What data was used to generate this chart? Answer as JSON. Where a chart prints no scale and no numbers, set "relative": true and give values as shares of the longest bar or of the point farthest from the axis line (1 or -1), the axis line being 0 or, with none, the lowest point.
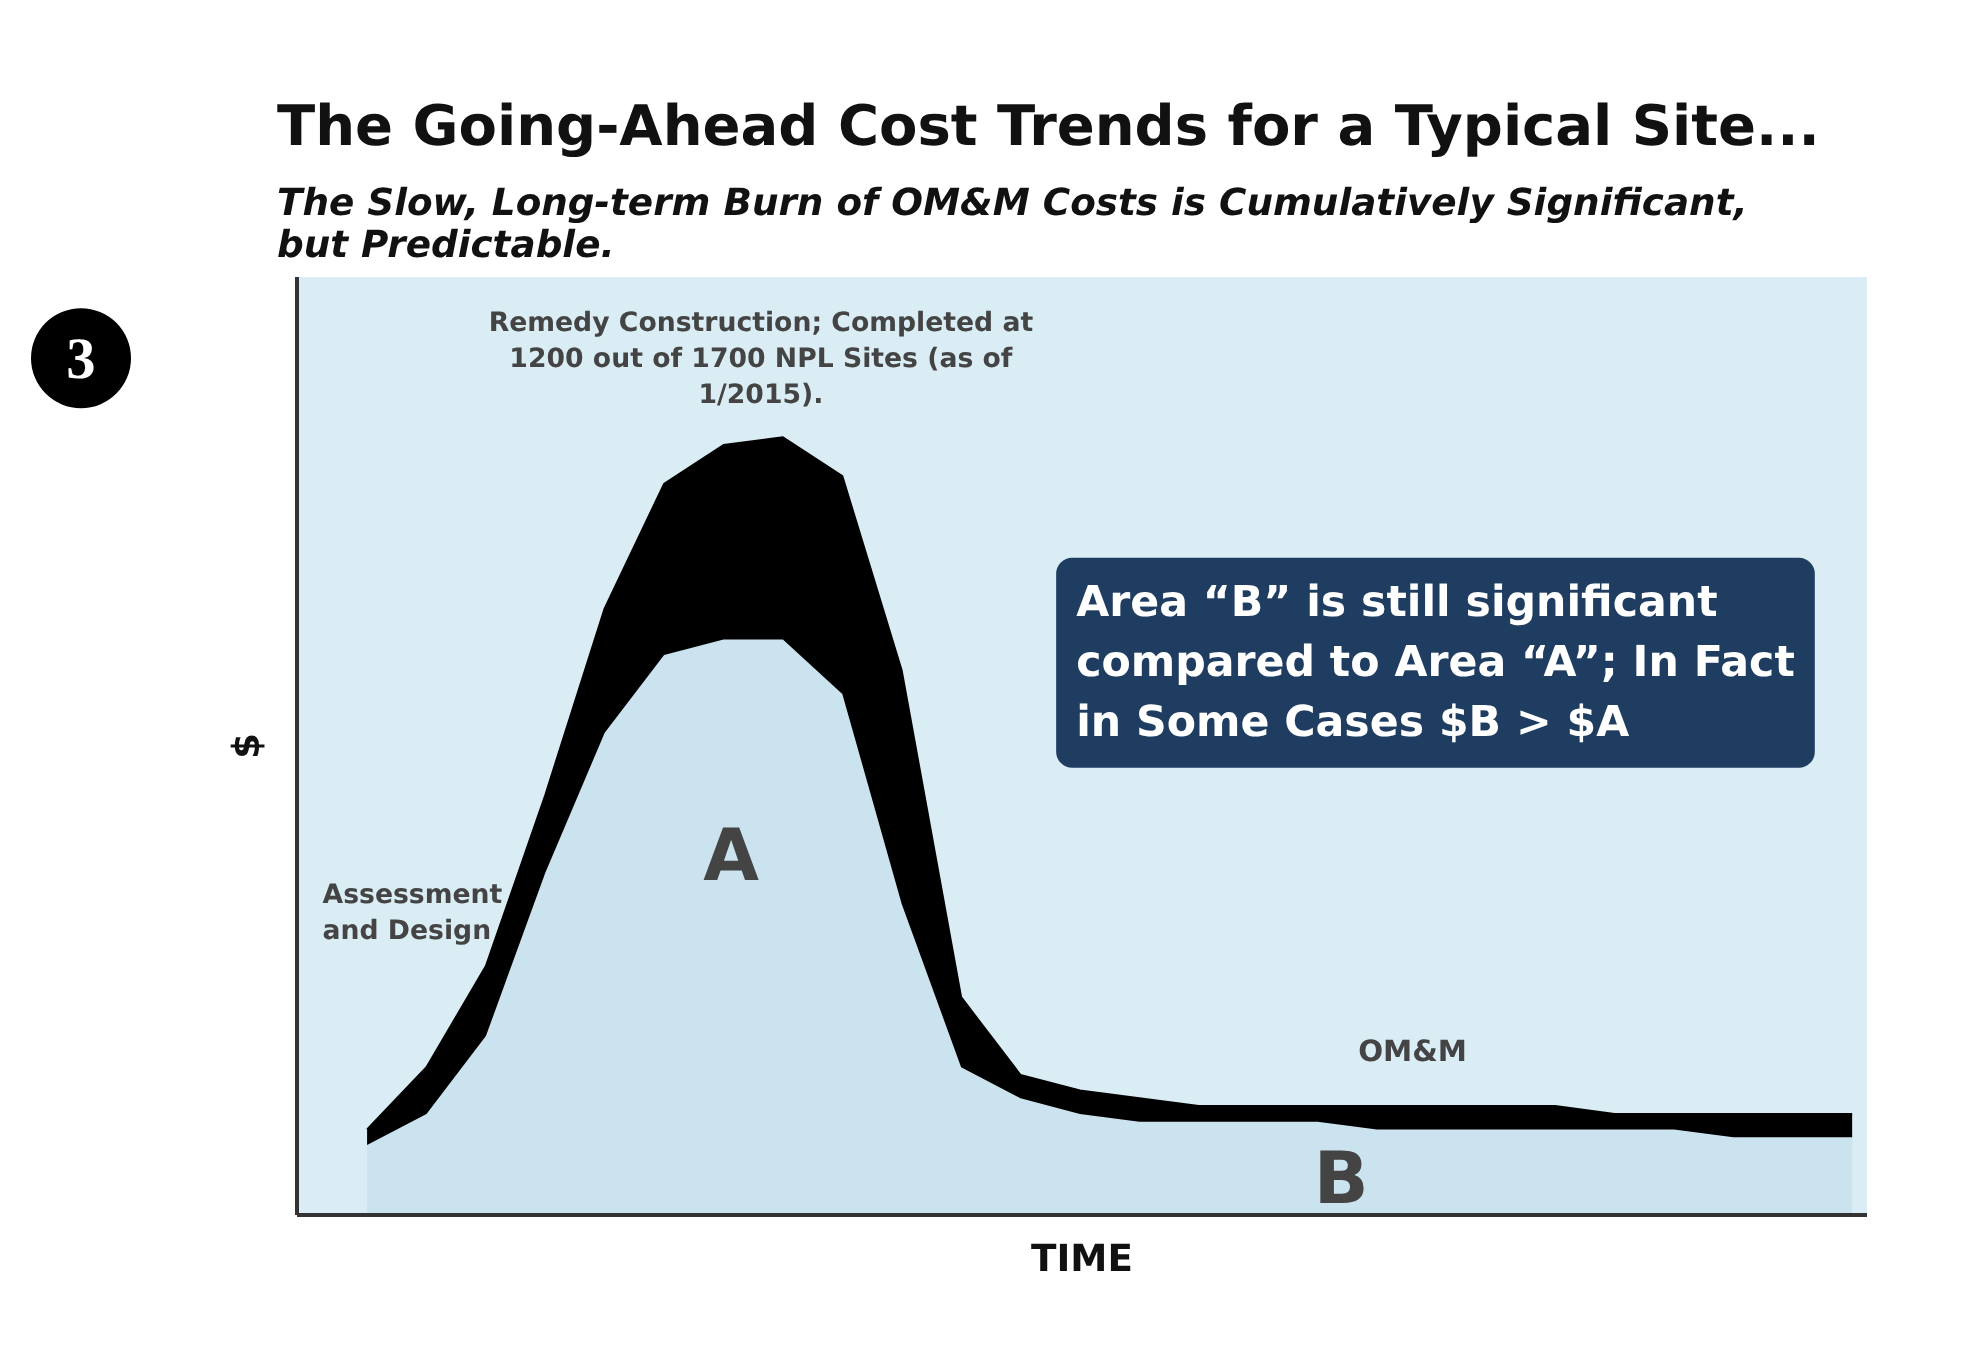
{
  "chart_data": {
    "type": "area",
    "stacked": true,
    "relative": true,
    "title": "The Going-Ahead Cost Trends for a Typical Site...",
    "subtitle": "The Slow, Long-term Burn of OM&M Costs is Cumulatively Significant, but Predictable.",
    "xlabel": "TIME",
    "ylabel": "$",
    "categories": [
      null,
      null,
      null,
      null,
      null,
      null,
      null,
      null,
      null,
      null,
      null,
      null,
      null,
      null,
      null,
      null,
      null,
      null,
      null,
      null,
      null,
      null,
      null,
      null,
      null,
      null
    ],
    "series": [
      {
        "color": "#cbe3ee",
        "values": [
          0.09,
          0.13,
          0.23,
          0.44,
          0.62,
          0.72,
          0.74,
          0.74,
          0.67,
          0.4,
          0.19,
          0.15,
          0.13,
          0.12,
          0.12,
          0.12,
          0.12,
          0.11,
          0.11,
          0.11,
          0.11,
          0.11,
          0.11,
          0.1,
          0.1,
          0.1
        ]
      },
      {
        "color": "#000000",
        "values": [
          0.02,
          0.06,
          0.09,
          0.1,
          0.16,
          0.22,
          0.25,
          0.26,
          0.28,
          0.3,
          0.09,
          0.03,
          0.03,
          0.03,
          0.02,
          0.02,
          0.02,
          0.03,
          0.03,
          0.03,
          0.03,
          0.02,
          0.02,
          0.03,
          0.03,
          0.03
        ]
      }
    ],
    "annotations": [
      "Remedy Construction; Completed at 1200 out of 1700 NPL Sites (as of 1/2015).",
      "Area “B” is still significant compared to Area “A”; In Fact in Some Cases $B > $A",
      "Assessment and Design",
      "A",
      "OM&M",
      "B",
      "3"
    ],
    "line_style": "solid"
  }
}
